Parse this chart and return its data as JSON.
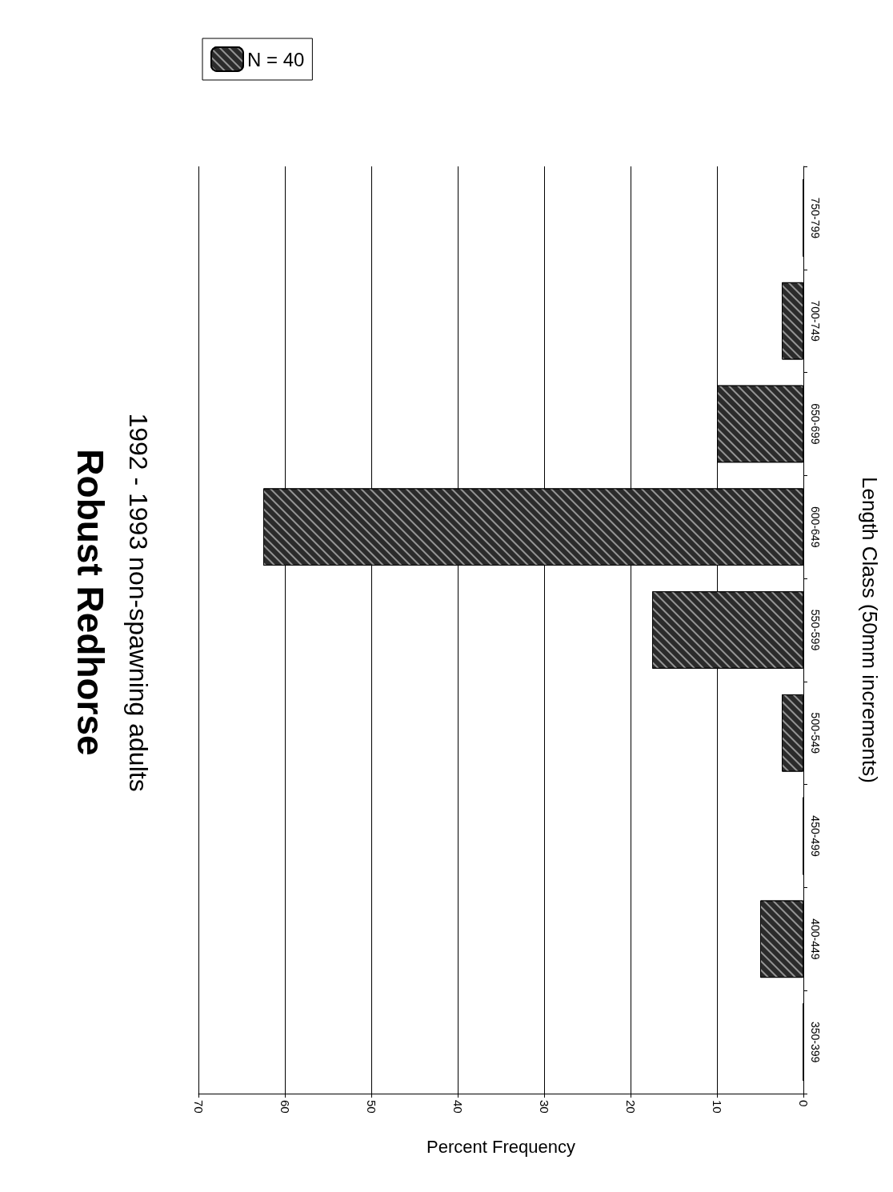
{
  "chart_data": {
    "type": "bar",
    "orientation": "horizontal",
    "title": "Robust Redhorse",
    "subtitle": "1992 - 1993 non-spawning adults",
    "xlabel": "Percent Frequency",
    "ylabel": "Length Class (50mm increments)",
    "categories": [
      "750-799",
      "700-749",
      "650-699",
      "600-649",
      "550-599",
      "500-549",
      "450-499",
      "400-449",
      "350-399"
    ],
    "series": [
      {
        "name": "N = 40",
        "color": "#2b2b2b",
        "values": [
          0,
          2.5,
          10,
          62.5,
          17.5,
          2.5,
          0,
          5,
          0
        ]
      }
    ],
    "xlim": [
      70,
      0
    ],
    "xticks": [
      0,
      10,
      20,
      30,
      40,
      50,
      60,
      70
    ],
    "grid": "x",
    "legend": "top left"
  }
}
